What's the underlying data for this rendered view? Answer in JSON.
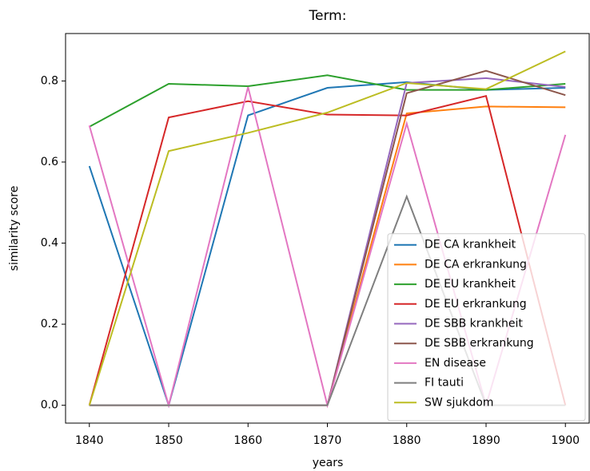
{
  "chart_data": {
    "type": "line",
    "title": "Term:",
    "xlabel": "years",
    "ylabel": "similarity score",
    "x": [
      1840,
      1850,
      1860,
      1870,
      1880,
      1890,
      1900
    ],
    "xlim": [
      1837,
      1903
    ],
    "xticks": [
      1840,
      1850,
      1860,
      1870,
      1880,
      1890,
      1900
    ],
    "ylim": [
      -0.044,
      0.917
    ],
    "yticks": [
      {
        "value": 0,
        "label": "0.0"
      },
      0.2,
      0.4,
      0.6,
      0.8
    ],
    "legend": "lower right",
    "series": [
      {
        "name": "DE CA krankheit",
        "color": "#1f77b4",
        "values": [
          0.59,
          0,
          0.715,
          0.783,
          0.797,
          0.778,
          0.783
        ]
      },
      {
        "name": "DE CA erkrankung",
        "color": "#ff7f0e",
        "values": [
          0,
          0,
          0,
          0,
          0.72,
          0.737,
          0.735
        ]
      },
      {
        "name": "DE EU krankheit",
        "color": "#2ca02c",
        "values": [
          0.687,
          0.793,
          0.787,
          0.814,
          0.778,
          0.778,
          0.793
        ]
      },
      {
        "name": "DE EU erkrankung",
        "color": "#d62728",
        "values": [
          0,
          0.71,
          0.75,
          0.717,
          0.715,
          0.763,
          0
        ]
      },
      {
        "name": "DE SBB krankheit",
        "color": "#9467bd",
        "values": [
          0,
          0,
          0,
          0,
          0.795,
          0.807,
          0.785
        ]
      },
      {
        "name": "DE SBB erkrankung",
        "color": "#8c564b",
        "values": [
          0,
          0,
          0,
          0,
          0.77,
          0.825,
          0.765
        ]
      },
      {
        "name": "EN disease",
        "color": "#e377c2",
        "values": [
          0.69,
          0,
          0.785,
          0,
          0.695,
          0,
          0.667
        ]
      },
      {
        "name": "FI tauti",
        "color": "#7f7f7f",
        "values": [
          0,
          0,
          0,
          0,
          0.515,
          0,
          0
        ]
      },
      {
        "name": "SW sjukdom",
        "color": "#bcbd22",
        "values": [
          0,
          0.627,
          0.672,
          0.722,
          0.795,
          0.78,
          0.873
        ]
      }
    ]
  }
}
